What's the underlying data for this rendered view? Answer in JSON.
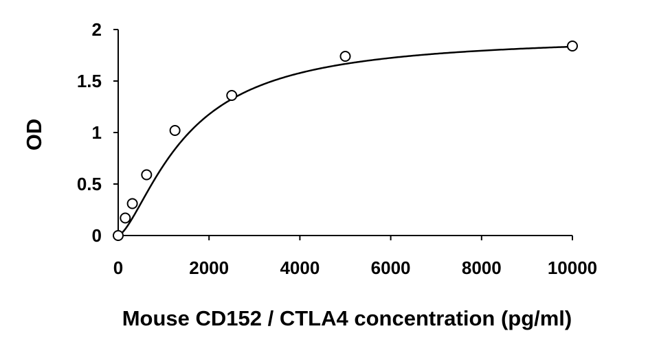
{
  "chart_data": {
    "type": "scatter",
    "xlabel": "Mouse CD152 / CTLA4 concentration (pg/ml)",
    "ylabel": "OD",
    "xlim": [
      0,
      10000
    ],
    "ylim": [
      0,
      2
    ],
    "x_ticks": [
      0,
      2000,
      4000,
      6000,
      8000,
      10000
    ],
    "y_ticks": [
      0,
      0.5,
      1,
      1.5,
      2
    ],
    "x_tick_labels": [
      "0",
      "2000",
      "4000",
      "6000",
      "8000",
      "10000"
    ],
    "y_tick_labels": [
      "0",
      "0.5",
      "1",
      "1.5",
      "2"
    ],
    "grid": false,
    "series": [
      {
        "marker": "open-circle",
        "x": [
          0,
          156,
          312,
          625,
          1250,
          2500,
          5000,
          10000
        ],
        "y": [
          0.0,
          0.17,
          0.31,
          0.59,
          1.02,
          1.36,
          1.74,
          1.84
        ]
      }
    ],
    "fit_curve": {
      "type": "4PL",
      "style": "solid black line"
    }
  }
}
